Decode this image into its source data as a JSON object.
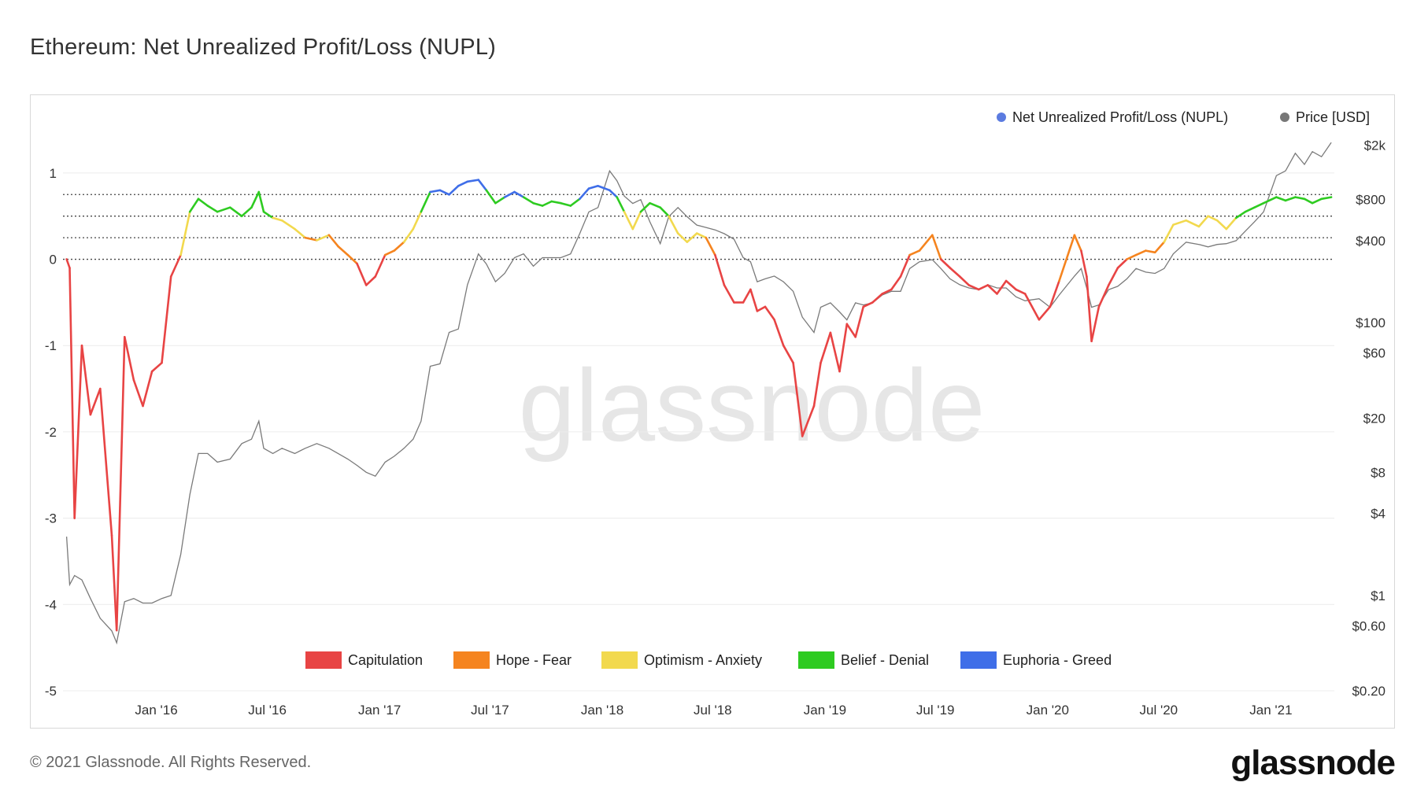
{
  "title": "Ethereum: Net Unrealized Profit/Loss (NUPL)",
  "footer": "© 2021 Glassnode. All Rights Reserved.",
  "brand": "glassnode",
  "watermark": "glassnode",
  "chart_data": {
    "type": "line",
    "x_ticks": [
      "Jan '16",
      "Jul '16",
      "Jan '17",
      "Jul '17",
      "Jan '18",
      "Jul '18",
      "Jan '19",
      "Jul '19",
      "Jan '20",
      "Jul '20",
      "Jan '21"
    ],
    "y_left_ticks": [
      1,
      0,
      -1,
      -2,
      -3,
      -4,
      -5
    ],
    "y_right_ticks": [
      "$2k",
      "$800",
      "$400",
      "$100",
      "$60",
      "$20",
      "$8",
      "$4",
      "$1",
      "$0.60",
      "$0.20"
    ],
    "y_left_range": [
      -5,
      1.5
    ],
    "y_right_log_range": [
      0.2,
      2600
    ],
    "reference_levels": [
      0.75,
      0.5,
      0.25,
      0
    ],
    "grid": true,
    "top_legend": [
      "Net Unrealized Profit/Loss (NUPL)",
      "Price [USD]"
    ],
    "top_legend_colors": [
      "#5b7be0",
      "#777777"
    ],
    "zone_legend": [
      {
        "label": "Capitulation",
        "color": "#e84444"
      },
      {
        "label": "Hope - Fear",
        "color": "#f5841f"
      },
      {
        "label": "Optimism - Anxiety",
        "color": "#f2d94e"
      },
      {
        "label": "Belief - Denial",
        "color": "#2ecb21"
      },
      {
        "label": "Euphoria - Greed",
        "color": "#3f6ee8"
      }
    ],
    "series": [
      {
        "name": "Net Unrealized Profit/Loss (NUPL)",
        "x": [
          "2015-08-07",
          "2015-08-12",
          "2015-08-20",
          "2015-09-01",
          "2015-09-15",
          "2015-10-01",
          "2015-10-20",
          "2015-10-28",
          "2015-11-10",
          "2015-11-25",
          "2015-12-10",
          "2015-12-25",
          "2016-01-10",
          "2016-01-25",
          "2016-02-10",
          "2016-02-25",
          "2016-03-10",
          "2016-03-25",
          "2016-04-10",
          "2016-05-01",
          "2016-05-20",
          "2016-06-05",
          "2016-06-17",
          "2016-06-25",
          "2016-07-10",
          "2016-07-25",
          "2016-08-15",
          "2016-09-01",
          "2016-09-20",
          "2016-10-10",
          "2016-10-25",
          "2016-11-10",
          "2016-11-25",
          "2016-12-10",
          "2016-12-25",
          "2017-01-10",
          "2017-01-25",
          "2017-02-10",
          "2017-02-25",
          "2017-03-10",
          "2017-03-25",
          "2017-04-10",
          "2017-04-25",
          "2017-05-10",
          "2017-05-25",
          "2017-06-12",
          "2017-06-25",
          "2017-07-10",
          "2017-07-25",
          "2017-08-10",
          "2017-08-25",
          "2017-09-10",
          "2017-09-25",
          "2017-10-10",
          "2017-10-25",
          "2017-11-10",
          "2017-11-25",
          "2017-12-10",
          "2017-12-25",
          "2018-01-13",
          "2018-01-25",
          "2018-02-06",
          "2018-02-20",
          "2018-03-05",
          "2018-03-20",
          "2018-04-06",
          "2018-04-20",
          "2018-05-05",
          "2018-05-20",
          "2018-06-05",
          "2018-06-20",
          "2018-07-05",
          "2018-07-20",
          "2018-08-05",
          "2018-08-20",
          "2018-09-01",
          "2018-09-12",
          "2018-09-25",
          "2018-10-10",
          "2018-10-25",
          "2018-11-10",
          "2018-11-25",
          "2018-12-14",
          "2018-12-25",
          "2019-01-10",
          "2019-01-25",
          "2019-02-06",
          "2019-02-20",
          "2019-03-05",
          "2019-03-20",
          "2019-04-05",
          "2019-04-20",
          "2019-05-05",
          "2019-05-20",
          "2019-06-05",
          "2019-06-26",
          "2019-07-10",
          "2019-07-25",
          "2019-08-10",
          "2019-08-25",
          "2019-09-10",
          "2019-09-25",
          "2019-10-10",
          "2019-10-25",
          "2019-11-10",
          "2019-11-25",
          "2019-12-18",
          "2020-01-05",
          "2020-01-20",
          "2020-02-14",
          "2020-02-25",
          "2020-03-05",
          "2020-03-13",
          "2020-03-25",
          "2020-04-10",
          "2020-04-25",
          "2020-05-10",
          "2020-05-25",
          "2020-06-10",
          "2020-06-25",
          "2020-07-10",
          "2020-07-25",
          "2020-08-15",
          "2020-09-05",
          "2020-09-20",
          "2020-10-05",
          "2020-10-20",
          "2020-11-05",
          "2020-11-20",
          "2020-12-05",
          "2020-12-20",
          "2021-01-10",
          "2021-01-25",
          "2021-02-10",
          "2021-02-25",
          "2021-03-10",
          "2021-03-25",
          "2021-04-10"
        ],
        "values": [
          0.0,
          -0.1,
          -3.0,
          -1.0,
          -1.8,
          -1.5,
          -3.2,
          -4.3,
          -0.9,
          -1.4,
          -1.7,
          -1.3,
          -1.2,
          -0.2,
          0.05,
          0.55,
          0.7,
          0.62,
          0.55,
          0.6,
          0.5,
          0.6,
          0.78,
          0.55,
          0.48,
          0.45,
          0.35,
          0.25,
          0.22,
          0.28,
          0.15,
          0.05,
          -0.05,
          -0.3,
          -0.2,
          0.05,
          0.1,
          0.2,
          0.35,
          0.55,
          0.78,
          0.8,
          0.75,
          0.85,
          0.9,
          0.92,
          0.8,
          0.65,
          0.72,
          0.78,
          0.72,
          0.65,
          0.62,
          0.67,
          0.65,
          0.62,
          0.7,
          0.82,
          0.85,
          0.8,
          0.72,
          0.55,
          0.35,
          0.55,
          0.65,
          0.6,
          0.5,
          0.3,
          0.2,
          0.3,
          0.25,
          0.05,
          -0.3,
          -0.5,
          -0.5,
          -0.35,
          -0.6,
          -0.55,
          -0.7,
          -1.0,
          -1.2,
          -2.05,
          -1.7,
          -1.2,
          -0.85,
          -1.3,
          -0.75,
          -0.9,
          -0.55,
          -0.5,
          -0.4,
          -0.35,
          -0.2,
          0.05,
          0.1,
          0.28,
          0.0,
          -0.1,
          -0.2,
          -0.3,
          -0.35,
          -0.3,
          -0.4,
          -0.25,
          -0.35,
          -0.4,
          -0.7,
          -0.55,
          -0.25,
          0.28,
          0.1,
          -0.2,
          -0.95,
          -0.55,
          -0.3,
          -0.1,
          0.0,
          0.05,
          0.1,
          0.08,
          0.2,
          0.4,
          0.45,
          0.38,
          0.5,
          0.45,
          0.35,
          0.48,
          0.55,
          0.6,
          0.65,
          0.72,
          0.68,
          0.72,
          0.7,
          0.65,
          0.7,
          0.72
        ]
      },
      {
        "name": "Price [USD]",
        "x": [
          "2015-08-07",
          "2015-08-12",
          "2015-08-20",
          "2015-09-01",
          "2015-09-15",
          "2015-10-01",
          "2015-10-20",
          "2015-10-28",
          "2015-11-10",
          "2015-11-25",
          "2015-12-10",
          "2015-12-25",
          "2016-01-10",
          "2016-01-25",
          "2016-02-10",
          "2016-02-25",
          "2016-03-10",
          "2016-03-25",
          "2016-04-10",
          "2016-05-01",
          "2016-05-20",
          "2016-06-05",
          "2016-06-17",
          "2016-06-25",
          "2016-07-10",
          "2016-07-25",
          "2016-08-15",
          "2016-09-01",
          "2016-09-20",
          "2016-10-10",
          "2016-10-25",
          "2016-11-10",
          "2016-11-25",
          "2016-12-10",
          "2016-12-25",
          "2017-01-10",
          "2017-01-25",
          "2017-02-10",
          "2017-02-25",
          "2017-03-10",
          "2017-03-25",
          "2017-04-10",
          "2017-04-25",
          "2017-05-10",
          "2017-05-25",
          "2017-06-12",
          "2017-06-25",
          "2017-07-10",
          "2017-07-25",
          "2017-08-10",
          "2017-08-25",
          "2017-09-10",
          "2017-09-25",
          "2017-10-10",
          "2017-10-25",
          "2017-11-10",
          "2017-11-25",
          "2017-12-10",
          "2017-12-25",
          "2018-01-13",
          "2018-01-25",
          "2018-02-06",
          "2018-02-20",
          "2018-03-05",
          "2018-03-20",
          "2018-04-06",
          "2018-04-20",
          "2018-05-05",
          "2018-05-20",
          "2018-06-05",
          "2018-06-20",
          "2018-07-05",
          "2018-07-20",
          "2018-08-05",
          "2018-08-20",
          "2018-09-01",
          "2018-09-12",
          "2018-09-25",
          "2018-10-10",
          "2018-10-25",
          "2018-11-10",
          "2018-11-25",
          "2018-12-14",
          "2018-12-25",
          "2019-01-10",
          "2019-01-25",
          "2019-02-06",
          "2019-02-20",
          "2019-03-05",
          "2019-03-20",
          "2019-04-05",
          "2019-04-20",
          "2019-05-05",
          "2019-05-20",
          "2019-06-05",
          "2019-06-26",
          "2019-07-10",
          "2019-07-25",
          "2019-08-10",
          "2019-08-25",
          "2019-09-10",
          "2019-09-25",
          "2019-10-10",
          "2019-10-25",
          "2019-11-10",
          "2019-11-25",
          "2019-12-18",
          "2020-01-05",
          "2020-01-20",
          "2020-02-14",
          "2020-02-25",
          "2020-03-05",
          "2020-03-13",
          "2020-03-25",
          "2020-04-10",
          "2020-04-25",
          "2020-05-10",
          "2020-05-25",
          "2020-06-10",
          "2020-06-25",
          "2020-07-10",
          "2020-07-25",
          "2020-08-15",
          "2020-09-05",
          "2020-09-20",
          "2020-10-05",
          "2020-10-20",
          "2020-11-05",
          "2020-11-20",
          "2020-12-05",
          "2020-12-20",
          "2021-01-10",
          "2021-01-25",
          "2021-02-10",
          "2021-02-25",
          "2021-03-10",
          "2021-03-25",
          "2021-04-10"
        ],
        "values": [
          2.7,
          1.2,
          1.4,
          1.3,
          0.95,
          0.68,
          0.55,
          0.45,
          0.9,
          0.95,
          0.88,
          0.88,
          0.95,
          1.0,
          2.0,
          5.5,
          11,
          11,
          9.5,
          10,
          13,
          14,
          19,
          12,
          11,
          12,
          11,
          12,
          13,
          12,
          11,
          10,
          9,
          8,
          7.5,
          9.5,
          10.5,
          12,
          14,
          19,
          48,
          50,
          85,
          90,
          190,
          320,
          270,
          200,
          230,
          300,
          320,
          260,
          300,
          300,
          300,
          320,
          450,
          650,
          700,
          1300,
          1100,
          850,
          750,
          800,
          550,
          380,
          600,
          700,
          600,
          520,
          500,
          480,
          450,
          410,
          300,
          280,
          200,
          210,
          220,
          200,
          170,
          110,
          85,
          130,
          140,
          120,
          105,
          140,
          135,
          140,
          160,
          170,
          170,
          250,
          280,
          290,
          250,
          210,
          190,
          180,
          175,
          190,
          180,
          180,
          155,
          145,
          150,
          130,
          160,
          220,
          250,
          180,
          130,
          135,
          175,
          185,
          210,
          250,
          235,
          230,
          250,
          320,
          390,
          375,
          360,
          375,
          380,
          400,
          470,
          550,
          650,
          1200,
          1300,
          1750,
          1450,
          1800,
          1650,
          2100
        ]
      }
    ]
  }
}
